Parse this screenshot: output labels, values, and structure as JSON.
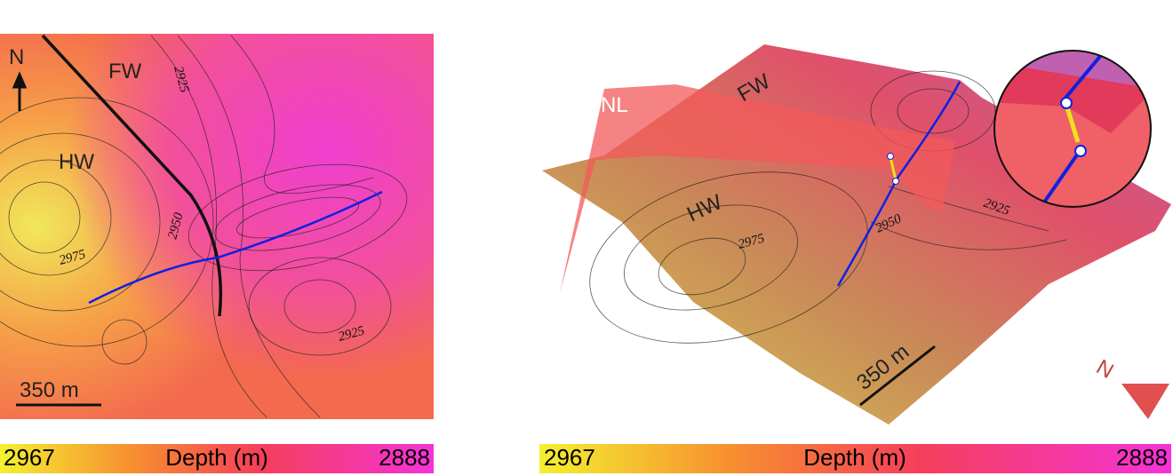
{
  "left_map": {
    "north_label": "N",
    "footwall": "FW",
    "hanging_wall": "HW",
    "contour_labels": [
      2925,
      2950,
      2975,
      2925
    ],
    "scale_bar": "350 m",
    "colorbar": {
      "min": 2967,
      "title": "Depth (m)",
      "max": 2888
    }
  },
  "right_map": {
    "fault_label": "NL",
    "footwall": "FW",
    "hanging_wall": "HW",
    "contour_labels": [
      2975,
      2950,
      2925
    ],
    "scale_bar": "350 m",
    "north_label": "N",
    "colorbar": {
      "min": 2967,
      "title": "Depth (m)",
      "max": 2888
    }
  }
}
